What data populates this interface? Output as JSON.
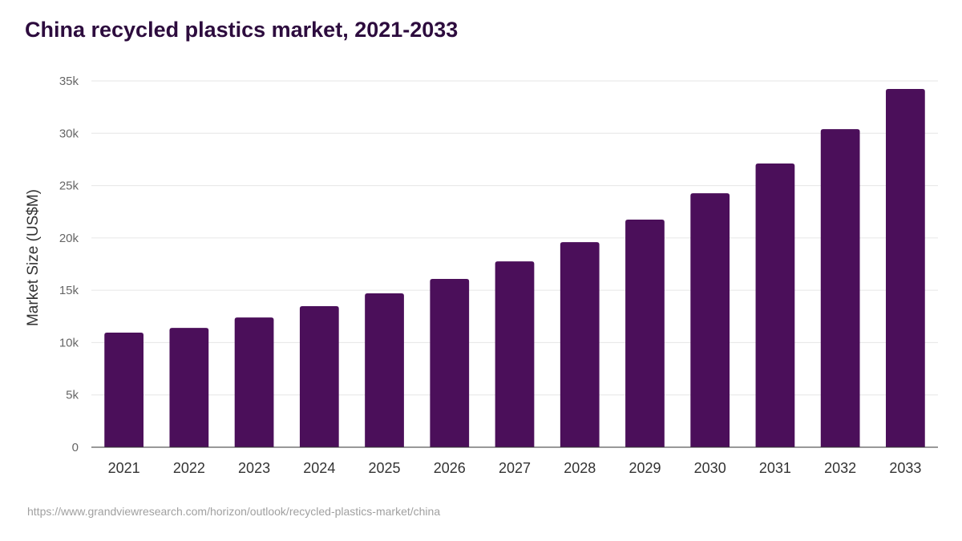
{
  "chart_data": {
    "type": "bar",
    "title": "China recycled plastics market, 2021-2033",
    "xlabel": "",
    "ylabel": "Market Size (US$M)",
    "ylim": [
      0,
      35000
    ],
    "yticks": [
      0,
      5000,
      10000,
      15000,
      20000,
      25000,
      30000,
      35000
    ],
    "ytick_labels": [
      "0",
      "5k",
      "10k",
      "15k",
      "20k",
      "25k",
      "30k",
      "35k"
    ],
    "categories": [
      "2021",
      "2022",
      "2023",
      "2024",
      "2025",
      "2026",
      "2027",
      "2028",
      "2029",
      "2030",
      "2031",
      "2032",
      "2033"
    ],
    "values": [
      10950,
      11400,
      12400,
      13480,
      14700,
      16080,
      17760,
      19600,
      21750,
      24270,
      27110,
      30400,
      34230
    ],
    "grid": true,
    "bar_color": "#4b0f5a"
  },
  "source": "https://www.grandviewresearch.com/horizon/outlook/recycled-plastics-market/china"
}
